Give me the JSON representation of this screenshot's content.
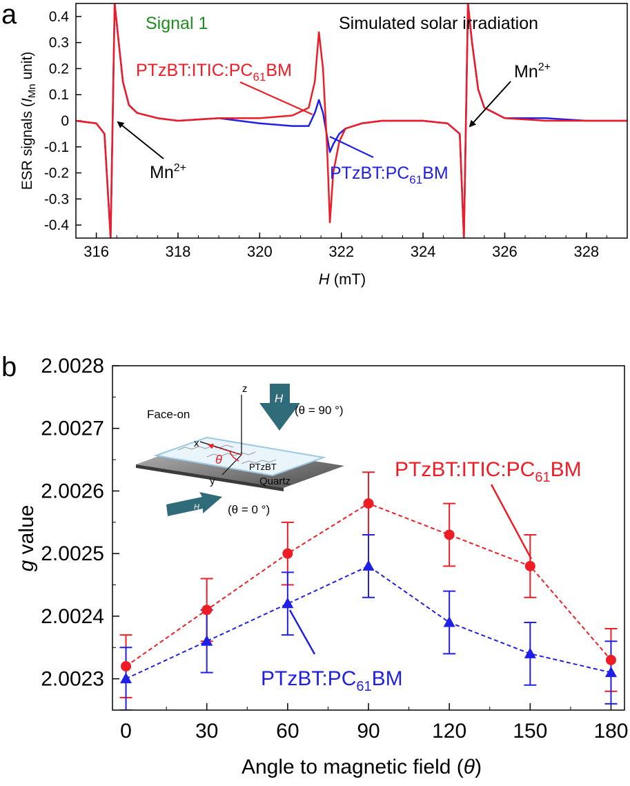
{
  "chart_data": [
    {
      "panel": "a",
      "type": "line",
      "title": "",
      "xlabel": "H",
      "xlabel_unit": " (mT)",
      "ylabel_parts": [
        "ESR signals (",
        "I",
        "Mn",
        " unit)"
      ],
      "xlim": [
        315.5,
        329.0
      ],
      "ylim": [
        -0.45,
        0.45
      ],
      "xticks": [
        316,
        318,
        320,
        322,
        324,
        326,
        328
      ],
      "yticks": [
        0.4,
        0.3,
        0.2,
        0.1,
        0,
        -0.1,
        -0.2,
        -0.3,
        -0.4
      ],
      "grid": false,
      "annotations": {
        "signal": "Signal 1",
        "condition": "Simulated solar irradiation",
        "mn_left": "Mn",
        "mn_right": "Mn",
        "mn_sup": "2+",
        "red_label": [
          "PTzBT:ITIC:PC",
          "61",
          "BM"
        ],
        "blue_label": [
          "PTzBT:PC",
          "61",
          "BM"
        ]
      },
      "series": [
        {
          "name": "PTzBT:ITIC:PC61BM",
          "color": "#ee1c25",
          "x": [
            315.5,
            316.0,
            316.2,
            316.35,
            316.45,
            316.55,
            316.65,
            316.8,
            317.0,
            317.5,
            318.0,
            319.0,
            320.0,
            320.8,
            321.2,
            321.35,
            321.45,
            321.55,
            321.65,
            321.72,
            321.8,
            321.95,
            322.1,
            322.5,
            323.0,
            324.0,
            324.6,
            324.9,
            325.0,
            325.1,
            325.2,
            325.35,
            325.5,
            326.0,
            327.0,
            328.0,
            329.0
          ],
          "y": [
            0.0,
            -0.01,
            -0.05,
            -0.45,
            0.45,
            0.3,
            0.15,
            0.06,
            0.03,
            0.01,
            0.0,
            0.01,
            0.01,
            0.02,
            0.05,
            0.15,
            0.34,
            0.2,
            -0.1,
            -0.39,
            -0.2,
            -0.08,
            -0.03,
            -0.01,
            0.0,
            0.0,
            -0.01,
            -0.05,
            -0.45,
            0.45,
            0.3,
            0.12,
            0.05,
            0.01,
            0.0,
            0.0,
            0.0
          ]
        },
        {
          "name": "PTzBT:PC61BM",
          "color": "#1f1fe6",
          "x": [
            315.5,
            316.0,
            316.2,
            316.35,
            316.45,
            316.55,
            316.65,
            316.8,
            317.0,
            317.5,
            318.0,
            319.0,
            320.0,
            320.8,
            321.2,
            321.35,
            321.45,
            321.55,
            321.65,
            321.72,
            321.8,
            321.95,
            322.1,
            322.5,
            323.0,
            324.0,
            324.6,
            324.9,
            325.0,
            325.1,
            325.2,
            325.35,
            325.5,
            326.0,
            327.0,
            328.0,
            329.0
          ],
          "y": [
            0.0,
            -0.01,
            -0.05,
            -0.45,
            0.45,
            0.3,
            0.15,
            0.06,
            0.03,
            0.01,
            0.0,
            0.01,
            -0.01,
            -0.02,
            -0.02,
            0.03,
            0.08,
            0.03,
            -0.06,
            -0.12,
            -0.09,
            -0.05,
            -0.03,
            -0.01,
            0.0,
            0.0,
            -0.01,
            -0.05,
            -0.45,
            0.45,
            0.3,
            0.12,
            0.05,
            0.01,
            0.01,
            0.0,
            0.0
          ]
        }
      ]
    },
    {
      "panel": "b",
      "type": "scatter",
      "title": "",
      "xlabel": "Angle to magnetic field (",
      "xlabel_sym": "θ",
      "xlabel_end": ")",
      "ylabel_sym": "g",
      "ylabel_rest": " value",
      "xlim": [
        -5,
        185
      ],
      "ylim": [
        2.00225,
        2.0028
      ],
      "xticks": [
        0,
        30,
        60,
        90,
        120,
        150,
        180
      ],
      "yticks": [
        "2.0028",
        "2.0027",
        "2.0026",
        "2.0025",
        "2.0024",
        "2.0023"
      ],
      "ytick_values": [
        2.0028,
        2.0027,
        2.0026,
        2.0025,
        2.0024,
        2.0023
      ],
      "grid": false,
      "annotations": {
        "red_label": [
          "PTzBT:ITIC:PC",
          "61",
          "BM"
        ],
        "blue_label": [
          "PTzBT:PC",
          "61",
          "BM"
        ]
      },
      "inset": {
        "face_on": "Face-on",
        "z": "z",
        "x": "x",
        "y": "y",
        "theta": "θ",
        "h": "H",
        "ptzbt": "PTzBT",
        "quartz": "Quartz",
        "angle_90": "(θ = 90 °)",
        "angle_0": "(θ = 0 °)"
      },
      "series": [
        {
          "name": "PTzBT:ITIC:PC61BM",
          "color": "#ee1c25",
          "marker": "circle",
          "x": [
            0,
            30,
            60,
            90,
            120,
            150,
            180
          ],
          "y": [
            2.00232,
            2.00241,
            2.0025,
            2.00258,
            2.00253,
            2.00248,
            2.00233
          ],
          "err": [
            5e-05,
            5e-05,
            5e-05,
            5e-05,
            5e-05,
            5e-05,
            5e-05
          ]
        },
        {
          "name": "PTzBT:PC61BM",
          "color": "#1f1fe6",
          "marker": "triangle",
          "x": [
            0,
            30,
            60,
            90,
            120,
            150,
            180
          ],
          "y": [
            2.0023,
            2.00236,
            2.00242,
            2.00248,
            2.00239,
            2.00234,
            2.00231
          ],
          "err": [
            5e-05,
            5e-05,
            5e-05,
            5e-05,
            5e-05,
            5e-05,
            5e-05
          ]
        }
      ]
    }
  ],
  "panel_labels": {
    "a": "a",
    "b": "b"
  },
  "colors": {
    "axis": "#000000",
    "signal": "#1e8c1e",
    "inset_arrow": "#2f6b78",
    "red": "#ee1c25",
    "blue": "#1f1fe6"
  }
}
